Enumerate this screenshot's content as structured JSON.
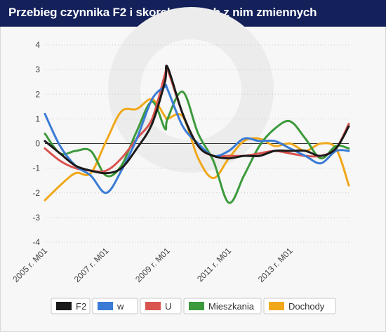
{
  "title": "Przebieg czynnika F2 i skorelowanych z nim zmiennych",
  "chart_data": {
    "type": "line",
    "title": "Przebieg czynnika F2 i skorelowanych z nim zmiennych",
    "x_tick_labels": [
      "2005 r. M01",
      "2007 r. M01",
      "2009 r. M01",
      "2011 r. M01",
      "2013 r. M01"
    ],
    "x_range": [
      "2005-01",
      "2014-12"
    ],
    "ylim": [
      -4,
      4
    ],
    "y_ticks": [
      -4,
      -3,
      -2,
      -1,
      0,
      1,
      2,
      3,
      4
    ],
    "grid": "horizontal dotted, solid zero line",
    "legend_position": "bottom",
    "series": [
      {
        "name": "F2",
        "color": "#1a1a1a",
        "x": [
          "2005-01",
          "2005-07",
          "2006-01",
          "2006-07",
          "2007-01",
          "2007-07",
          "2008-01",
          "2008-07",
          "2008-12",
          "2009-01",
          "2009-07",
          "2010-01",
          "2010-07",
          "2011-01",
          "2011-07",
          "2012-01",
          "2012-07",
          "2013-01",
          "2013-07",
          "2014-01",
          "2014-07",
          "2014-12"
        ],
        "y": [
          0.1,
          -0.4,
          -0.9,
          -1.1,
          -1.2,
          -1.0,
          -0.2,
          0.8,
          2.5,
          3.1,
          1.2,
          -0.1,
          -0.5,
          -0.6,
          -0.5,
          -0.5,
          -0.3,
          -0.3,
          -0.3,
          -0.5,
          -0.2,
          0.7
        ]
      },
      {
        "name": "w",
        "color": "#3a7bd5",
        "x": [
          "2005-01",
          "2005-07",
          "2006-01",
          "2006-07",
          "2007-01",
          "2007-07",
          "2008-01",
          "2008-07",
          "2008-12",
          "2009-01",
          "2009-07",
          "2010-01",
          "2010-07",
          "2011-01",
          "2011-07",
          "2012-01",
          "2012-07",
          "2013-01",
          "2013-07",
          "2014-01",
          "2014-07",
          "2014-12"
        ],
        "y": [
          1.2,
          -0.1,
          -0.9,
          -1.3,
          -2.0,
          -1.1,
          0.2,
          1.8,
          2.3,
          2.2,
          0.7,
          0.0,
          -0.5,
          -0.3,
          0.2,
          0.1,
          0.1,
          -0.2,
          -0.5,
          -0.8,
          -0.3,
          -0.3
        ]
      },
      {
        "name": "U",
        "color": "#d9534f",
        "x": [
          "2005-01",
          "2005-07",
          "2006-01",
          "2006-07",
          "2007-01",
          "2007-07",
          "2008-01",
          "2008-07",
          "2008-12",
          "2009-01",
          "2009-07",
          "2010-01",
          "2010-07",
          "2011-01",
          "2011-07",
          "2012-01",
          "2012-07",
          "2013-01",
          "2013-07",
          "2014-01",
          "2014-07",
          "2014-12"
        ],
        "y": [
          -0.2,
          -0.7,
          -1.0,
          -1.1,
          -1.1,
          -0.6,
          0.2,
          1.0,
          2.8,
          3.0,
          1.2,
          -0.1,
          -0.5,
          -0.5,
          -0.5,
          -0.4,
          -0.3,
          -0.4,
          -0.5,
          -0.5,
          -0.2,
          0.8
        ]
      },
      {
        "name": "Mieszkania",
        "color": "#3c9a3c",
        "x": [
          "2005-01",
          "2005-07",
          "2006-01",
          "2006-07",
          "2007-01",
          "2007-07",
          "2008-01",
          "2008-07",
          "2008-12",
          "2009-01",
          "2009-07",
          "2010-01",
          "2010-07",
          "2011-01",
          "2011-07",
          "2012-01",
          "2012-07",
          "2013-01",
          "2013-07",
          "2014-01",
          "2014-07",
          "2014-12"
        ],
        "y": [
          0.4,
          -0.4,
          -0.3,
          -0.3,
          -1.3,
          -0.9,
          0.5,
          1.7,
          0.6,
          1.0,
          2.1,
          0.4,
          -0.7,
          -2.4,
          -1.3,
          -0.1,
          0.6,
          0.9,
          0.2,
          -0.6,
          -0.1,
          -0.2
        ]
      },
      {
        "name": "Dochody",
        "color": "#f0a81a",
        "x": [
          "2005-01",
          "2005-07",
          "2006-01",
          "2006-07",
          "2007-01",
          "2007-07",
          "2008-01",
          "2008-07",
          "2008-12",
          "2009-01",
          "2009-07",
          "2010-01",
          "2010-07",
          "2011-01",
          "2011-07",
          "2012-01",
          "2012-07",
          "2013-01",
          "2013-07",
          "2014-01",
          "2014-07",
          "2014-12"
        ],
        "y": [
          -2.3,
          -1.7,
          -1.2,
          -1.2,
          0.1,
          1.3,
          1.4,
          1.8,
          1.1,
          1.0,
          1.1,
          -0.6,
          -1.4,
          -0.6,
          0.1,
          0.2,
          -0.1,
          0.0,
          -0.3,
          0.0,
          -0.2,
          -1.7
        ]
      }
    ]
  }
}
